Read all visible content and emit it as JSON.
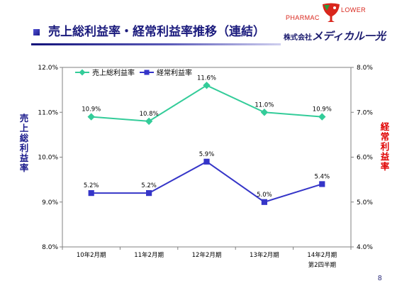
{
  "slide": {
    "title": "売上総利益率・経常利益率推移（連結）",
    "page_number": "8",
    "logo": {
      "left_text": "PHARMAC",
      "right_text": "LOWER"
    },
    "company": {
      "prefix": "株式会社",
      "name": "メディカル一光"
    },
    "colors": {
      "title": "#1b1b7d",
      "logo_red": "#d9261c",
      "logo_green": "#2e9a3a"
    }
  },
  "chart_data": {
    "type": "line",
    "categories": [
      "10年2月期",
      "11年2月期",
      "12年2月期",
      "13年2月期",
      "14年2月期\n第2四半期"
    ],
    "series": [
      {
        "name": "売上総利益率",
        "axis": "left",
        "values": [
          10.9,
          10.8,
          11.6,
          11.0,
          10.9
        ],
        "labels": [
          "10.9%",
          "10.8%",
          "11.6%",
          "11.0%",
          "10.9%"
        ],
        "color": "#33cc99",
        "marker": "diamond"
      },
      {
        "name": "経常利益率",
        "axis": "right",
        "values": [
          5.2,
          5.2,
          5.9,
          5.0,
          5.4
        ],
        "labels": [
          "5.2%",
          "5.2%",
          "5.9%",
          "5.0%",
          "5.4%"
        ],
        "color": "#3535c8",
        "marker": "square"
      }
    ],
    "y_left": {
      "label": "売上総利益率",
      "color": "#1a1a8c",
      "range": [
        8,
        12
      ],
      "ticks": [
        {
          "value": 8,
          "label": "8.0%"
        },
        {
          "value": 9,
          "label": "9.0%"
        },
        {
          "value": 10,
          "label": "10.0%"
        },
        {
          "value": 11,
          "label": "11.0%"
        },
        {
          "value": 12,
          "label": "12.0%"
        }
      ]
    },
    "y_right": {
      "label": "経常利益率",
      "color": "#e00000",
      "range": [
        4,
        8
      ],
      "ticks": [
        {
          "value": 4,
          "label": "4.0%"
        },
        {
          "value": 5,
          "label": "5.0%"
        },
        {
          "value": 6,
          "label": "6.0%"
        },
        {
          "value": 7,
          "label": "7.0%"
        },
        {
          "value": 8,
          "label": "8.0%"
        }
      ]
    },
    "legend": "top-left",
    "grid": false
  }
}
